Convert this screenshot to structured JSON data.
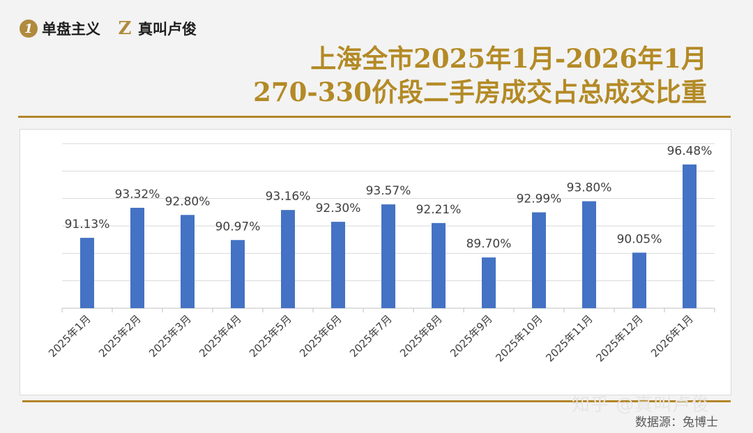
{
  "brand": {
    "item1": "单盘主义",
    "item2": "真叫卢俊"
  },
  "header": {
    "title_line1": "上海全市2025年1月-2026年1月",
    "title_line2": "270-330价段二手房成交占总成交比重"
  },
  "footer": {
    "watermark": "知乎 @真叫卢俊",
    "source": "数据源：兔博士"
  },
  "colors": {
    "bar": "#4472c4",
    "accent": "#b38a25",
    "grid": "#d9d9d9"
  },
  "chart_data": {
    "type": "bar",
    "categories": [
      "2025年1月",
      "2025年2月",
      "2025年3月",
      "2025年4月",
      "2025年5月",
      "2025年6月",
      "2025年7月",
      "2025年8月",
      "2025年9月",
      "2025年10月",
      "2025年11月",
      "2025年12月",
      "2026年1月"
    ],
    "values": [
      91.13,
      93.32,
      92.8,
      90.97,
      93.16,
      92.3,
      93.57,
      92.21,
      89.7,
      92.99,
      93.8,
      90.05,
      96.48
    ],
    "data_labels": [
      "91.13%",
      "93.32%",
      "92.80%",
      "90.97%",
      "93.16%",
      "92.30%",
      "93.57%",
      "92.21%",
      "89.70%",
      "92.99%",
      "93.80%",
      "90.05%",
      "96.48%"
    ],
    "ylim": [
      86,
      98
    ],
    "grid": true,
    "title": "",
    "xlabel": "",
    "ylabel": ""
  }
}
